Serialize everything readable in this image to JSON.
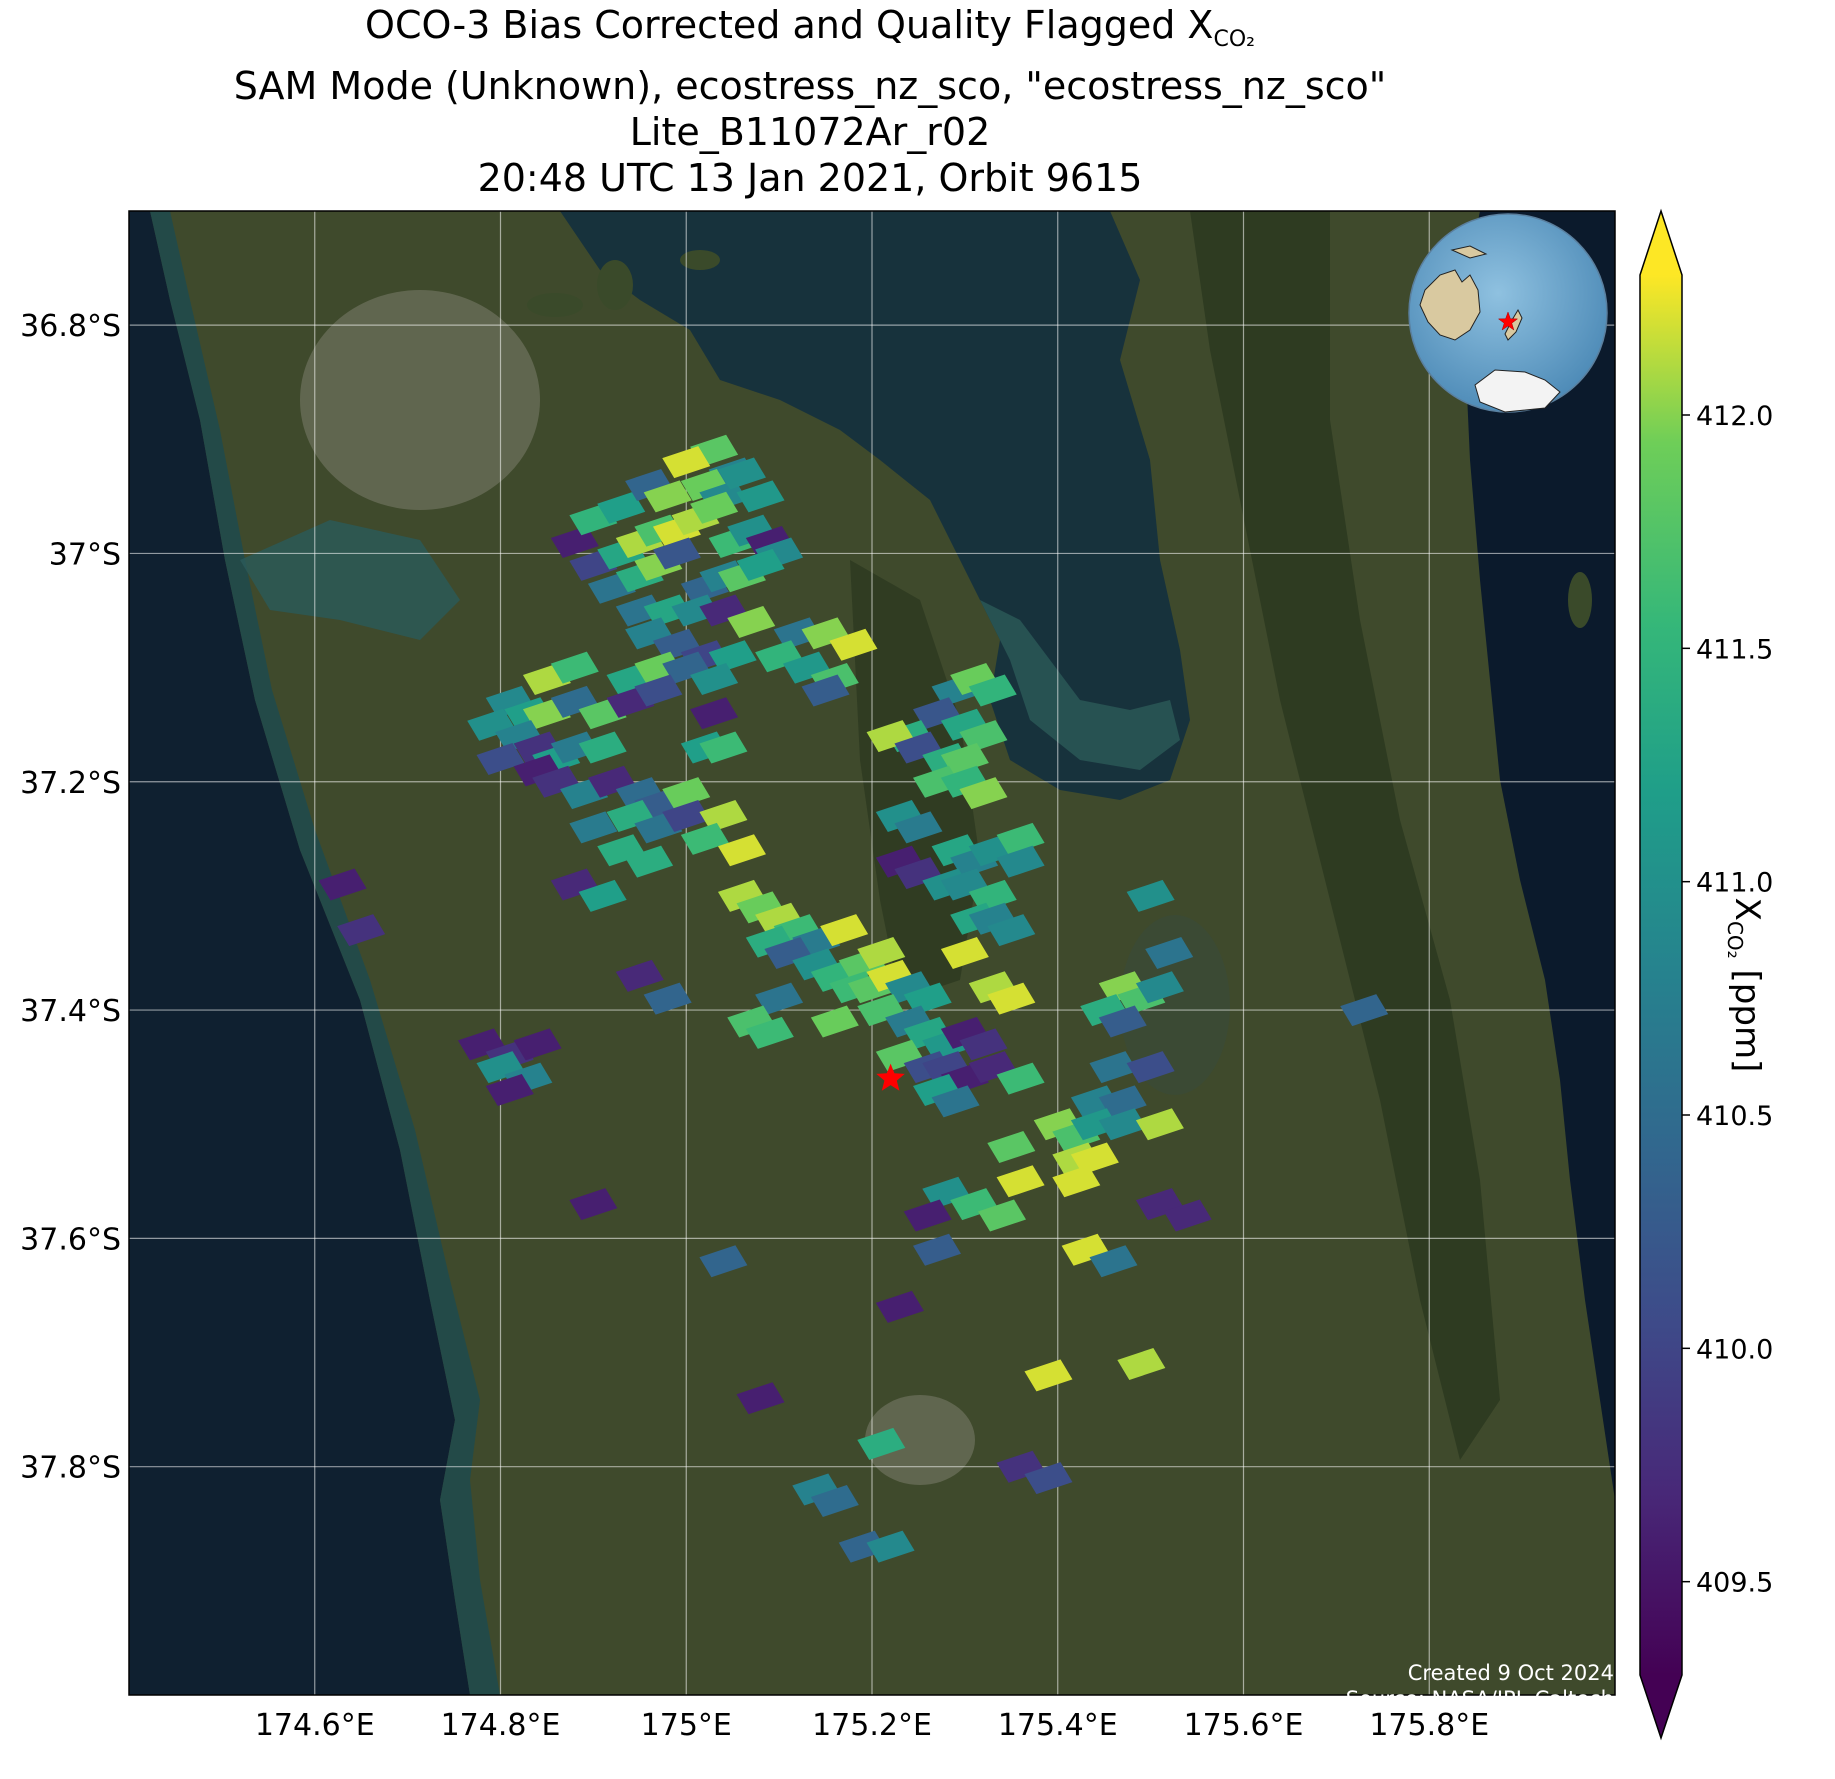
{
  "title": {
    "line1_prefix": "OCO-3 Bias Corrected and Quality Flagged X",
    "line1_sub": "CO₂",
    "line2": "SAM Mode (Unknown), ecostress_nz_sco, \"ecostress_nz_sco\"",
    "line3": "Lite_B11072Ar_r02",
    "line4": "20:48 UTC 13 Jan 2021, Orbit 9615"
  },
  "map": {
    "lon_range": [
      174.4,
      176.0
    ],
    "lat_range": [
      -38.0,
      -36.7
    ],
    "lon_ticks": [
      {
        "value": 174.6,
        "label": "174.6°E"
      },
      {
        "value": 174.8,
        "label": "174.8°E"
      },
      {
        "value": 175.0,
        "label": "175°E"
      },
      {
        "value": 175.2,
        "label": "175.2°E"
      },
      {
        "value": 175.4,
        "label": "175.4°E"
      },
      {
        "value": 175.6,
        "label": "175.6°E"
      },
      {
        "value": 175.8,
        "label": "175.8°E"
      }
    ],
    "lat_ticks": [
      {
        "value": -36.8,
        "label": "36.8°S"
      },
      {
        "value": -37.0,
        "label": "37°S"
      },
      {
        "value": -37.2,
        "label": "37.2°S"
      },
      {
        "value": -37.4,
        "label": "37.4°S"
      },
      {
        "value": -37.6,
        "label": "37.6°S"
      },
      {
        "value": -37.8,
        "label": "37.8°S"
      }
    ],
    "gridlines": true,
    "basemap": "satellite imagery",
    "target_marker": {
      "lon": 175.22,
      "lat": -37.46,
      "color": "#ff0000",
      "icon": "star-icon"
    }
  },
  "inset": {
    "type": "globe",
    "marker_color": "#ff0000",
    "icon": "star-icon"
  },
  "colorbar": {
    "label_prefix": "X",
    "label_sub": "CO₂",
    "label_suffix": " [ppm]",
    "min": 409.3,
    "max": 412.3,
    "ticks": [
      "409.5",
      "410.0",
      "410.5",
      "411.0",
      "411.5",
      "412.0"
    ],
    "tick_values": [
      409.5,
      410.0,
      410.5,
      411.0,
      411.5,
      412.0
    ],
    "extend": "both",
    "colormap": "viridis"
  },
  "credits": {
    "created": "Created 9 Oct 2024",
    "source": "Source: NASA/JPL-Caltech"
  },
  "chart_data": {
    "type": "scatter",
    "title": "OCO-3 Bias Corrected and Quality Flagged XCO2",
    "xlabel": "",
    "ylabel": "",
    "value_label": "XCO2 [ppm]",
    "xlim": [
      174.4,
      176.0
    ],
    "ylim": [
      -38.0,
      -36.7
    ],
    "points": [
      [
        175.03,
        -36.91,
        411.8
      ],
      [
        175.05,
        -36.93,
        410.8
      ],
      [
        174.88,
        -36.99,
        409.6
      ],
      [
        174.9,
        -36.97,
        411.5
      ],
      [
        174.93,
        -36.96,
        411.2
      ],
      [
        174.96,
        -36.94,
        410.4
      ],
      [
        174.98,
        -36.95,
        412.0
      ],
      [
        175.0,
        -36.92,
        412.2
      ],
      [
        175.02,
        -36.94,
        411.9
      ],
      [
        175.04,
        -36.95,
        410.9
      ],
      [
        175.06,
        -36.93,
        411.0
      ],
      [
        175.08,
        -36.95,
        411.1
      ],
      [
        174.9,
        -37.01,
        410.0
      ],
      [
        174.93,
        -37.0,
        411.3
      ],
      [
        174.95,
        -36.99,
        412.1
      ],
      [
        174.97,
        -36.98,
        411.7
      ],
      [
        174.99,
        -36.98,
        412.2
      ],
      [
        175.01,
        -36.97,
        412.1
      ],
      [
        175.03,
        -36.96,
        411.9
      ],
      [
        174.92,
        -37.03,
        410.6
      ],
      [
        174.95,
        -37.02,
        411.4
      ],
      [
        174.97,
        -37.01,
        412.0
      ],
      [
        174.99,
        -37.0,
        410.2
      ],
      [
        175.05,
        -36.99,
        411.6
      ],
      [
        175.07,
        -36.98,
        411.0
      ],
      [
        175.09,
        -36.99,
        409.6
      ],
      [
        175.1,
        -37.0,
        410.9
      ],
      [
        175.02,
        -37.03,
        410.4
      ],
      [
        175.04,
        -37.02,
        410.8
      ],
      [
        175.06,
        -37.02,
        411.8
      ],
      [
        175.08,
        -37.01,
        411.2
      ],
      [
        174.95,
        -37.05,
        410.6
      ],
      [
        174.98,
        -37.05,
        411.3
      ],
      [
        175.01,
        -37.05,
        410.9
      ],
      [
        175.04,
        -37.05,
        409.7
      ],
      [
        175.07,
        -37.06,
        412.0
      ],
      [
        175.12,
        -37.07,
        410.6
      ],
      [
        175.15,
        -37.07,
        412.0
      ],
      [
        175.18,
        -37.08,
        412.2
      ],
      [
        175.1,
        -37.09,
        411.5
      ],
      [
        175.13,
        -37.1,
        411.1
      ],
      [
        175.16,
        -37.11,
        411.7
      ],
      [
        174.96,
        -37.07,
        410.8
      ],
      [
        174.99,
        -37.08,
        410.3
      ],
      [
        175.02,
        -37.09,
        410.0
      ],
      [
        175.05,
        -37.09,
        411.2
      ],
      [
        174.85,
        -37.11,
        412.1
      ],
      [
        174.88,
        -37.1,
        411.6
      ],
      [
        174.94,
        -37.11,
        411.3
      ],
      [
        174.97,
        -37.1,
        411.9
      ],
      [
        175.0,
        -37.1,
        410.4
      ],
      [
        175.03,
        -37.11,
        411.0
      ],
      [
        175.15,
        -37.12,
        410.3
      ],
      [
        174.81,
        -37.13,
        410.9
      ],
      [
        174.83,
        -37.14,
        411.2
      ],
      [
        174.85,
        -37.14,
        412.0
      ],
      [
        174.88,
        -37.13,
        410.5
      ],
      [
        174.91,
        -37.14,
        411.8
      ],
      [
        174.94,
        -37.13,
        409.7
      ],
      [
        174.97,
        -37.12,
        410.1
      ],
      [
        175.03,
        -37.14,
        409.6
      ],
      [
        175.29,
        -37.12,
        410.8
      ],
      [
        175.31,
        -37.11,
        411.9
      ],
      [
        175.33,
        -37.12,
        411.5
      ],
      [
        175.27,
        -37.14,
        410.2
      ],
      [
        175.3,
        -37.15,
        411.3
      ],
      [
        175.32,
        -37.16,
        411.7
      ],
      [
        175.24,
        -37.16,
        411.4
      ],
      [
        174.79,
        -37.15,
        411.0
      ],
      [
        174.82,
        -37.16,
        410.8
      ],
      [
        174.84,
        -37.17,
        409.8
      ],
      [
        174.86,
        -37.18,
        411.2
      ],
      [
        174.88,
        -37.17,
        410.7
      ],
      [
        174.91,
        -37.17,
        411.4
      ],
      [
        175.02,
        -37.17,
        411.2
      ],
      [
        175.04,
        -37.17,
        411.6
      ],
      [
        175.22,
        -37.16,
        412.1
      ],
      [
        175.25,
        -37.17,
        410.1
      ],
      [
        175.28,
        -37.18,
        411.4
      ],
      [
        175.3,
        -37.18,
        411.8
      ],
      [
        174.8,
        -37.18,
        410.1
      ],
      [
        174.84,
        -37.19,
        409.6
      ],
      [
        174.86,
        -37.2,
        409.8
      ],
      [
        174.89,
        -37.21,
        410.8
      ],
      [
        174.92,
        -37.2,
        409.7
      ],
      [
        174.95,
        -37.21,
        410.5
      ],
      [
        174.97,
        -37.22,
        410.3
      ],
      [
        175.0,
        -37.21,
        411.9
      ],
      [
        175.27,
        -37.2,
        411.7
      ],
      [
        175.3,
        -37.2,
        411.5
      ],
      [
        175.32,
        -37.21,
        412.0
      ],
      [
        174.94,
        -37.23,
        411.4
      ],
      [
        174.97,
        -37.24,
        410.6
      ],
      [
        175.0,
        -37.23,
        410.0
      ],
      [
        175.04,
        -37.23,
        412.1
      ],
      [
        175.23,
        -37.23,
        411.0
      ],
      [
        174.9,
        -37.24,
        410.7
      ],
      [
        175.02,
        -37.25,
        411.6
      ],
      [
        175.25,
        -37.24,
        410.7
      ],
      [
        174.93,
        -37.26,
        411.4
      ],
      [
        174.96,
        -37.27,
        411.4
      ],
      [
        175.06,
        -37.26,
        412.2
      ],
      [
        175.23,
        -37.27,
        409.6
      ],
      [
        175.25,
        -37.28,
        409.8
      ],
      [
        175.29,
        -37.26,
        411.3
      ],
      [
        175.31,
        -37.27,
        410.8
      ],
      [
        175.33,
        -37.26,
        411.0
      ],
      [
        175.36,
        -37.25,
        411.6
      ],
      [
        174.88,
        -37.29,
        409.7
      ],
      [
        174.91,
        -37.3,
        411.2
      ],
      [
        175.06,
        -37.3,
        412.1
      ],
      [
        175.08,
        -37.31,
        411.9
      ],
      [
        175.28,
        -37.29,
        411.0
      ],
      [
        175.3,
        -37.29,
        410.9
      ],
      [
        175.33,
        -37.3,
        411.5
      ],
      [
        175.36,
        -37.27,
        410.9
      ],
      [
        175.1,
        -37.32,
        412.1
      ],
      [
        175.12,
        -37.33,
        411.6
      ],
      [
        175.14,
        -37.34,
        410.7
      ],
      [
        175.17,
        -37.33,
        412.2
      ],
      [
        175.31,
        -37.32,
        411.3
      ],
      [
        175.33,
        -37.32,
        410.8
      ],
      [
        175.35,
        -37.33,
        410.9
      ],
      [
        174.63,
        -37.29,
        409.6
      ],
      [
        174.65,
        -37.33,
        409.8
      ],
      [
        175.09,
        -37.34,
        411.4
      ],
      [
        175.11,
        -37.35,
        410.3
      ],
      [
        175.14,
        -37.36,
        411.0
      ],
      [
        175.16,
        -37.37,
        411.5
      ],
      [
        175.19,
        -37.36,
        411.8
      ],
      [
        175.21,
        -37.35,
        412.1
      ],
      [
        175.3,
        -37.35,
        412.2
      ],
      [
        175.5,
        -37.3,
        411.0
      ],
      [
        175.52,
        -37.35,
        410.6
      ],
      [
        174.95,
        -37.37,
        409.7
      ],
      [
        174.98,
        -37.39,
        410.4
      ],
      [
        175.1,
        -37.39,
        410.6
      ],
      [
        175.18,
        -37.38,
        411.6
      ],
      [
        175.2,
        -37.38,
        411.8
      ],
      [
        175.22,
        -37.37,
        412.2
      ],
      [
        175.24,
        -37.38,
        410.9
      ],
      [
        175.26,
        -37.39,
        411.2
      ],
      [
        175.33,
        -37.38,
        412.1
      ],
      [
        175.35,
        -37.39,
        412.2
      ],
      [
        175.47,
        -37.38,
        412.0
      ],
      [
        175.49,
        -37.39,
        411.7
      ],
      [
        175.51,
        -37.38,
        410.9
      ],
      [
        175.45,
        -37.4,
        411.4
      ],
      [
        175.47,
        -37.41,
        410.3
      ],
      [
        175.73,
        -37.4,
        410.4
      ],
      [
        175.07,
        -37.41,
        411.7
      ],
      [
        175.09,
        -37.42,
        411.6
      ],
      [
        175.16,
        -37.41,
        411.9
      ],
      [
        175.21,
        -37.4,
        411.7
      ],
      [
        175.24,
        -37.41,
        410.7
      ],
      [
        175.26,
        -37.42,
        411.3
      ],
      [
        175.28,
        -37.43,
        411.1
      ],
      [
        175.3,
        -37.42,
        409.6
      ],
      [
        175.32,
        -37.43,
        409.8
      ],
      [
        174.78,
        -37.43,
        409.6
      ],
      [
        174.81,
        -37.44,
        409.8
      ],
      [
        174.84,
        -37.43,
        409.6
      ],
      [
        174.8,
        -37.45,
        411.0
      ],
      [
        174.83,
        -37.46,
        410.8
      ],
      [
        175.23,
        -37.44,
        411.8
      ],
      [
        175.26,
        -37.45,
        410.1
      ],
      [
        175.28,
        -37.45,
        410.0
      ],
      [
        175.3,
        -37.46,
        409.6
      ],
      [
        175.33,
        -37.45,
        409.7
      ],
      [
        175.36,
        -37.46,
        411.6
      ],
      [
        175.46,
        -37.45,
        410.6
      ],
      [
        175.5,
        -37.45,
        410.1
      ],
      [
        174.81,
        -37.47,
        409.6
      ],
      [
        175.27,
        -37.47,
        411.2
      ],
      [
        175.29,
        -37.48,
        410.6
      ],
      [
        175.44,
        -37.48,
        410.8
      ],
      [
        175.47,
        -37.48,
        410.5
      ],
      [
        175.4,
        -37.5,
        412.0
      ],
      [
        175.42,
        -37.51,
        411.7
      ],
      [
        175.44,
        -37.5,
        411.1
      ],
      [
        175.47,
        -37.5,
        410.9
      ],
      [
        175.51,
        -37.5,
        412.1
      ],
      [
        175.35,
        -37.52,
        411.8
      ],
      [
        175.42,
        -37.53,
        412.1
      ],
      [
        175.44,
        -37.53,
        412.2
      ],
      [
        175.42,
        -37.55,
        412.2
      ],
      [
        175.36,
        -37.55,
        412.2
      ],
      [
        175.28,
        -37.56,
        411.0
      ],
      [
        175.31,
        -37.57,
        411.6
      ],
      [
        175.34,
        -37.58,
        411.8
      ],
      [
        174.9,
        -37.57,
        409.6
      ],
      [
        175.26,
        -37.58,
        409.6
      ],
      [
        175.51,
        -37.57,
        409.7
      ],
      [
        175.54,
        -37.58,
        409.7
      ],
      [
        175.27,
        -37.61,
        410.3
      ],
      [
        175.43,
        -37.61,
        412.2
      ],
      [
        175.46,
        -37.62,
        410.6
      ],
      [
        175.04,
        -37.62,
        410.4
      ],
      [
        175.23,
        -37.66,
        409.6
      ],
      [
        175.39,
        -37.72,
        412.2
      ],
      [
        175.49,
        -37.71,
        412.1
      ],
      [
        175.08,
        -37.74,
        409.6
      ],
      [
        175.21,
        -37.78,
        411.4
      ],
      [
        175.36,
        -37.8,
        409.8
      ],
      [
        175.39,
        -37.81,
        410.1
      ],
      [
        175.14,
        -37.82,
        410.8
      ],
      [
        175.16,
        -37.83,
        410.5
      ],
      [
        175.19,
        -37.87,
        410.4
      ],
      [
        175.22,
        -37.87,
        410.9
      ]
    ]
  }
}
